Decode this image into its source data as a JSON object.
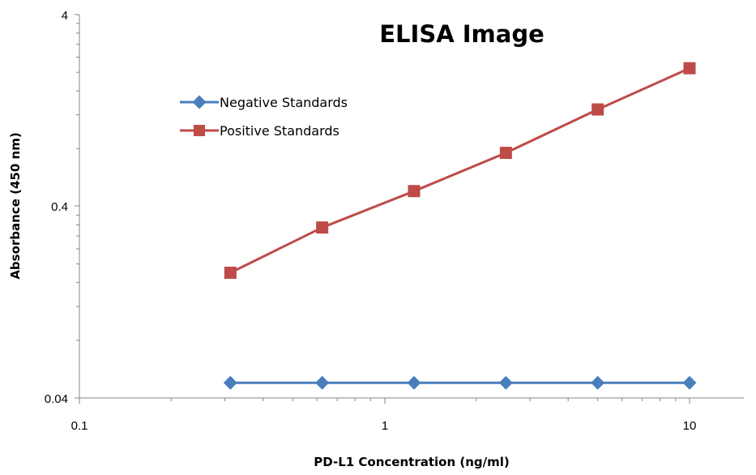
{
  "chart_data": {
    "type": "line",
    "title": "ELISA Image",
    "xlabel": "PD-L1 Concentration (ng/ml)",
    "ylabel": "Absorbance (450 nm)",
    "xscale": "log",
    "yscale": "log",
    "xlim": [
      0.1,
      15
    ],
    "ylim": [
      0.04,
      4
    ],
    "x_ticks": [
      "0.1",
      "1",
      "10"
    ],
    "y_ticks": [
      "0.04",
      "0.4",
      "4"
    ],
    "x": [
      0.3125,
      0.625,
      1.25,
      2.5,
      5,
      10
    ],
    "series": [
      {
        "name": "Negative Standards",
        "color": "#4A7EBB",
        "marker": "diamond",
        "values": [
          0.048,
          0.048,
          0.048,
          0.048,
          0.048,
          0.048
        ]
      },
      {
        "name": "Positive Standards",
        "color": "#BE4B48",
        "marker": "square",
        "values": [
          0.18,
          0.31,
          0.48,
          0.76,
          1.28,
          2.1
        ]
      }
    ],
    "legend_position": "upper-left, inside plot",
    "grid": false
  }
}
